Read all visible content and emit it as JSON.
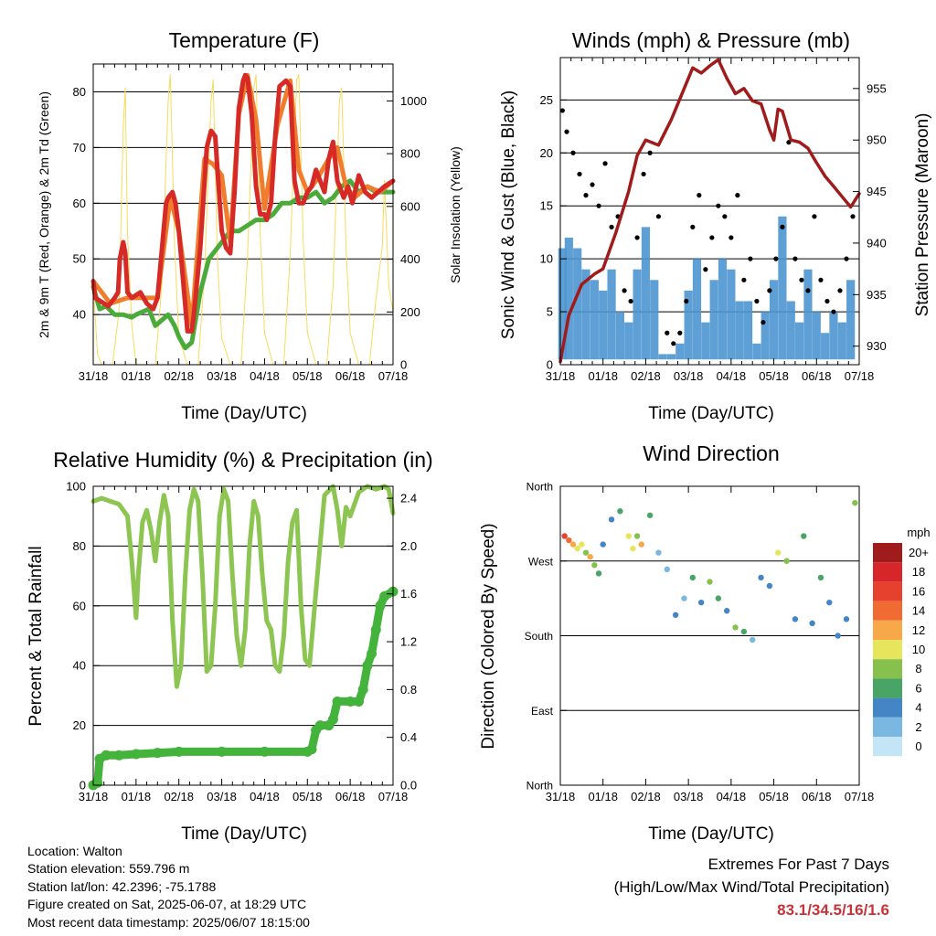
{
  "chart_data": [
    {
      "type": "line",
      "title": "Temperature (F)",
      "xlabel": "Time (Day/UTC)",
      "ylabel": "2m & 9m T (Red, Orange) & 2m Td (Green)",
      "ylabel_right": "Solar Insolation (Yellow)",
      "x_ticks": [
        "31/18",
        "01/18",
        "02/18",
        "03/18",
        "04/18",
        "05/18",
        "06/18",
        "07/18"
      ],
      "ylim": [
        31,
        85
      ],
      "y_ticks": [
        40,
        50,
        60,
        70,
        80
      ],
      "ylim_right": [
        0,
        1140
      ],
      "y_ticks_right": [
        0,
        200,
        400,
        600,
        800,
        1000
      ],
      "grid": "horizontal",
      "colors": {
        "t2m": "#d62a27",
        "t9m": "#f07d2c",
        "td2m": "#4aab3a",
        "solar": "#f5dc5e"
      },
      "series": [
        {
          "key": "t2m",
          "x": [
            0,
            0.05,
            0.15,
            0.35,
            0.5,
            0.58,
            0.62,
            0.7,
            0.75,
            0.8,
            0.9,
            1,
            1.1,
            1.25,
            1.4,
            1.5,
            1.7,
            1.75,
            1.85,
            1.92,
            2,
            2.2,
            2.3,
            2.35,
            2.5,
            2.65,
            2.75,
            2.85,
            2.9,
            3,
            3.1,
            3.2,
            3.3,
            3.4,
            3.5,
            3.55,
            3.6,
            3.7,
            3.8,
            3.9,
            4,
            4.05,
            4.15,
            4.25,
            4.35,
            4.5,
            4.6,
            4.7,
            4.8,
            4.9,
            5,
            5.1,
            5.2,
            5.3,
            5.4,
            5.5,
            5.6,
            5.7,
            5.85,
            5.95,
            6.05,
            6.2,
            6.35,
            6.5,
            6.65,
            6.8,
            7
          ],
          "values": [
            46,
            43,
            42.5,
            41.5,
            43,
            44,
            50,
            53,
            51,
            44,
            43,
            43.5,
            44,
            42,
            41,
            43,
            60,
            61,
            62,
            60,
            55,
            37,
            37,
            40,
            52,
            70,
            73,
            72,
            66,
            55,
            52,
            51,
            62,
            77,
            82,
            83,
            82.5,
            76,
            63,
            58,
            58,
            57,
            60,
            72,
            81,
            82,
            81,
            64,
            60,
            60,
            62,
            63,
            66,
            64,
            62,
            68,
            71,
            64,
            61,
            63,
            60,
            65,
            62,
            61,
            62,
            63,
            64
          ]
        },
        {
          "key": "t9m",
          "x": [
            0,
            0.4,
            0.8,
            1,
            1.5,
            1.8,
            2,
            2.3,
            2.6,
            2.8,
            2.9,
            3,
            3.2,
            3.4,
            3.6,
            3.8,
            4,
            4.3,
            4.6,
            4.8,
            5,
            5.2,
            5.5,
            5.7,
            5.9,
            6.1,
            6.4,
            6.7,
            7
          ],
          "values": [
            46,
            42,
            43,
            43,
            43,
            61,
            55,
            38,
            68,
            67,
            66,
            65,
            53,
            76,
            83,
            75,
            59,
            74,
            82,
            66,
            62,
            64,
            68,
            70,
            63,
            61,
            63,
            62,
            64
          ]
        },
        {
          "key": "td2m",
          "x": [
            0,
            0.15,
            0.3,
            0.5,
            0.7,
            0.9,
            1,
            1.15,
            1.3,
            1.45,
            1.6,
            1.75,
            1.9,
            2,
            2.15,
            2.3,
            2.5,
            2.7,
            2.9,
            3,
            3.2,
            3.4,
            3.6,
            3.8,
            4,
            4.2,
            4.4,
            4.6,
            4.8,
            5,
            5.2,
            5.4,
            5.6,
            5.8,
            6,
            6.2,
            6.4,
            6.6,
            6.8,
            7
          ],
          "values": [
            45,
            41,
            41.5,
            40,
            40,
            39.5,
            40,
            40.5,
            41,
            38,
            39,
            40,
            38,
            36,
            34,
            35,
            44,
            50,
            52,
            53,
            55,
            55,
            56,
            57,
            57,
            58,
            60,
            60,
            61,
            61,
            62,
            60,
            61,
            63,
            64,
            62,
            63,
            62,
            62,
            62
          ]
        },
        {
          "key": "solar",
          "axis": "right",
          "x": [
            0,
            0.1,
            0.2,
            0.3,
            0.45,
            0.6,
            0.7,
            0.75,
            0.8,
            0.9,
            1,
            1.1,
            1.3,
            1.45,
            1.6,
            1.75,
            1.8,
            1.9,
            2,
            2.2,
            2.45,
            2.6,
            2.75,
            2.8,
            2.9,
            3,
            3.2,
            3.45,
            3.6,
            3.75,
            3.8,
            3.9,
            4,
            4.2,
            4.45,
            4.6,
            4.75,
            4.8,
            4.9,
            5,
            5.2,
            5.45,
            5.6,
            5.75,
            5.8,
            5.9,
            6,
            6.2,
            6.45,
            6.6,
            6.75,
            6.8,
            6.9,
            7
          ],
          "values": [
            300,
            40,
            0,
            0,
            0,
            200,
            900,
            1050,
            500,
            150,
            0,
            0,
            0,
            0,
            300,
            1000,
            1100,
            450,
            100,
            0,
            0,
            350,
            1000,
            1080,
            400,
            100,
            0,
            0,
            400,
            1050,
            1100,
            500,
            120,
            0,
            0,
            420,
            1080,
            1100,
            480,
            120,
            0,
            0,
            300,
            1000,
            1050,
            450,
            120,
            0,
            0,
            250,
            450,
            700,
            300,
            200
          ]
        }
      ]
    },
    {
      "type": "scatter",
      "title": "Winds (mph) & Pressure (mb)",
      "xlabel": "Time (Day/UTC)",
      "ylabel": "Sonic Wind & Gust (Blue, Black)",
      "ylabel_right": "Station Pressure (Maroon)",
      "x_ticks": [
        "31/18",
        "01/18",
        "02/18",
        "03/18",
        "04/18",
        "05/18",
        "06/18",
        "07/18"
      ],
      "ylim": [
        0,
        29
      ],
      "y_ticks": [
        0,
        5,
        10,
        15,
        20,
        25
      ],
      "ylim_right": [
        928.2,
        958
      ],
      "y_ticks_right": [
        930,
        935,
        940,
        945,
        950,
        955
      ],
      "grid": "horizontal",
      "colors": {
        "wind": "#4c95d0",
        "gust": "#000000",
        "pressure": "#a01c1c"
      },
      "series": [
        {
          "key": "pressure",
          "x": [
            0,
            0.2,
            0.5,
            0.8,
            1,
            1.3,
            1.6,
            1.8,
            2,
            2.3,
            2.6,
            2.9,
            3.1,
            3.3,
            3.5,
            3.7,
            3.9,
            4.1,
            4.3,
            4.5,
            4.7,
            4.9,
            5,
            5.1,
            5.2,
            5.4,
            5.6,
            5.8,
            6,
            6.2,
            6.4,
            6.6,
            6.8,
            7
          ],
          "values": [
            928.5,
            933,
            936,
            937,
            937.5,
            941,
            945,
            948.5,
            950,
            949.5,
            952,
            955,
            957,
            956.5,
            957.2,
            957.8,
            956,
            954.5,
            955,
            953.8,
            953.5,
            951,
            950,
            953,
            952.8,
            950,
            949.8,
            949.2,
            947.8,
            946.5,
            945.5,
            944.5,
            943.5,
            944.8
          ]
        },
        {
          "key": "wind",
          "x": [
            0.05,
            0.2,
            0.4,
            0.6,
            0.8,
            1,
            1.2,
            1.4,
            1.6,
            1.8,
            2,
            2.2,
            2.4,
            2.6,
            2.8,
            3,
            3.2,
            3.4,
            3.6,
            3.8,
            4,
            4.2,
            4.4,
            4.6,
            4.8,
            5,
            5.2,
            5.4,
            5.6,
            5.8,
            6,
            6.2,
            6.4,
            6.6,
            6.8
          ],
          "values": [
            11,
            12,
            11,
            9,
            8,
            7,
            9,
            5,
            4,
            9,
            13,
            8,
            1,
            1,
            2,
            7,
            10,
            4,
            8,
            10,
            9,
            6,
            6,
            2,
            5,
            8,
            14,
            6,
            4,
            9,
            5,
            3,
            5,
            4,
            8
          ]
        },
        {
          "key": "gust",
          "x": [
            0.05,
            0.15,
            0.3,
            0.45,
            0.6,
            0.75,
            0.9,
            1.05,
            1.2,
            1.35,
            1.5,
            1.65,
            1.8,
            1.95,
            2.1,
            2.3,
            2.5,
            2.65,
            2.8,
            2.95,
            3.1,
            3.25,
            3.4,
            3.55,
            3.7,
            3.85,
            4,
            4.15,
            4.3,
            4.45,
            4.6,
            4.75,
            4.9,
            5.05,
            5.2,
            5.35,
            5.5,
            5.65,
            5.8,
            5.95,
            6.1,
            6.25,
            6.4,
            6.55,
            6.7,
            6.85
          ],
          "values": [
            24,
            22,
            20,
            18,
            16,
            17,
            15,
            19,
            13,
            14,
            7,
            6,
            12,
            18,
            20,
            14,
            3,
            2,
            3,
            6,
            13,
            16,
            9,
            12,
            15,
            14,
            12,
            16,
            8,
            10,
            6,
            4,
            7,
            10,
            13,
            21,
            10,
            8,
            7,
            14,
            8,
            6,
            5,
            7,
            10,
            14
          ]
        }
      ]
    },
    {
      "type": "line",
      "title": "Relative Humidity (%) & Precipitation (in)",
      "xlabel": "Time (Day/UTC)",
      "ylabel": "Percent & Total Rainfall",
      "x_ticks": [
        "31/18",
        "01/18",
        "02/18",
        "03/18",
        "04/18",
        "05/18",
        "06/18",
        "07/18"
      ],
      "ylim": [
        0,
        100
      ],
      "y_ticks": [
        0,
        20,
        40,
        60,
        80,
        100
      ],
      "ylim_right": [
        0,
        2.5
      ],
      "y_ticks_right": [
        "0.0",
        "0.4",
        "0.8",
        "1.2",
        "1.6",
        "2.0",
        "2.4"
      ],
      "grid": "horizontal",
      "colors": {
        "rh": "#8dc553",
        "precip": "#44b33b"
      },
      "series": [
        {
          "key": "rh",
          "x": [
            0,
            0.2,
            0.4,
            0.6,
            0.8,
            0.9,
            1,
            1.05,
            1.15,
            1.25,
            1.35,
            1.45,
            1.55,
            1.65,
            1.75,
            1.85,
            1.95,
            2.05,
            2.15,
            2.25,
            2.35,
            2.45,
            2.55,
            2.65,
            2.75,
            2.85,
            2.95,
            3.05,
            3.15,
            3.25,
            3.35,
            3.45,
            3.55,
            3.65,
            3.75,
            3.85,
            3.95,
            4.05,
            4.15,
            4.25,
            4.35,
            4.45,
            4.55,
            4.65,
            4.75,
            4.85,
            4.95,
            5.05,
            5.2,
            5.4,
            5.6,
            5.7,
            5.8,
            5.9,
            6,
            6.2,
            6.4,
            6.6,
            6.8,
            6.9,
            7
          ],
          "values": [
            95,
            96,
            95,
            94,
            90,
            75,
            56,
            70,
            88,
            92,
            85,
            75,
            88,
            97,
            90,
            55,
            33,
            40,
            70,
            92,
            99,
            95,
            70,
            38,
            40,
            60,
            90,
            99,
            95,
            70,
            50,
            40,
            52,
            80,
            95,
            90,
            70,
            55,
            52,
            40,
            38,
            50,
            75,
            88,
            92,
            60,
            42,
            40,
            65,
            97,
            100,
            92,
            80,
            93,
            90,
            98,
            100,
            99,
            100,
            99,
            91
          ]
        },
        {
          "key": "precip",
          "axis": "right",
          "x": [
            0,
            0.1,
            0.15,
            0.3,
            0.6,
            1,
            1.5,
            2,
            3,
            4,
            5,
            5.1,
            5.2,
            5.3,
            5.5,
            5.6,
            5.7,
            6,
            6.2,
            6.3,
            6.4,
            6.5,
            6.6,
            6.7,
            6.8,
            7
          ],
          "values": [
            0,
            0.02,
            0.22,
            0.25,
            0.25,
            0.26,
            0.27,
            0.28,
            0.28,
            0.28,
            0.28,
            0.3,
            0.46,
            0.5,
            0.5,
            0.55,
            0.7,
            0.7,
            0.7,
            0.8,
            1.0,
            1.1,
            1.3,
            1.5,
            1.58,
            1.62
          ]
        }
      ]
    },
    {
      "type": "scatter",
      "title": "Wind Direction",
      "xlabel": "Time (Day/UTC)",
      "ylabel": "Direction (Colored By Speed)",
      "x_ticks": [
        "31/18",
        "01/18",
        "02/18",
        "03/18",
        "04/18",
        "05/18",
        "06/18",
        "07/18"
      ],
      "y_ticks": [
        "North",
        "West",
        "South",
        "East",
        "North"
      ],
      "legend_title": "mph",
      "legend_labels": [
        "20+",
        "18",
        "16",
        "14",
        "12",
        "10",
        "8",
        "6",
        "4",
        "2",
        "0"
      ],
      "legend_colors": [
        "#a01c1c",
        "#d6262a",
        "#e5412e",
        "#f06b32",
        "#f7a849",
        "#e6e55b",
        "#86c04d",
        "#49a566",
        "#4485c5",
        "#7ab7e1",
        "#c3e5f6"
      ],
      "legend": "right",
      "grid": "horizontal",
      "points_t": [
        0.1,
        0.2,
        0.3,
        0.4,
        0.5,
        0.6,
        0.7,
        0.8,
        0.9,
        1.0,
        1.2,
        1.4,
        1.6,
        1.7,
        1.8,
        1.9,
        2.1,
        2.3,
        2.5,
        2.7,
        2.9,
        3.1,
        3.3,
        3.5,
        3.7,
        3.9,
        4.1,
        4.3,
        4.5,
        4.7,
        4.9,
        5.1,
        5.3,
        5.5,
        5.7,
        5.9,
        6.1,
        6.3,
        6.5,
        6.7,
        6.9
      ],
      "points_dir": [
        300,
        295,
        290,
        285,
        290,
        280,
        275,
        265,
        255,
        290,
        320,
        330,
        300,
        285,
        300,
        290,
        325,
        280,
        260,
        205,
        225,
        250,
        220,
        245,
        225,
        210,
        190,
        185,
        175,
        250,
        240,
        280,
        270,
        200,
        300,
        195,
        250,
        220,
        180,
        200,
        340
      ],
      "points_speed": [
        16,
        14,
        12,
        10,
        10,
        8,
        12,
        8,
        6,
        4,
        4,
        6,
        10,
        10,
        8,
        12,
        6,
        2,
        2,
        4,
        2,
        6,
        4,
        8,
        6,
        4,
        8,
        6,
        2,
        4,
        4,
        10,
        8,
        4,
        6,
        4,
        6,
        4,
        4,
        4,
        8
      ]
    }
  ],
  "footer": {
    "location": "Location: Walton",
    "elevation": "Station elevation: 559.796 m",
    "latlon": "Station lat/lon: 42.2396; -75.1788",
    "created": "Figure created on Sat, 2025-06-07, at 18:29 UTC",
    "recent": "Most recent data timestamp: 2025/06/07 18:15:00"
  },
  "extremes": {
    "title": "Extremes For Past 7 Days",
    "subtitle": "(High/Low/Max Wind/Total Precipitation)",
    "values": "83.1/34.5/16/1.6"
  }
}
